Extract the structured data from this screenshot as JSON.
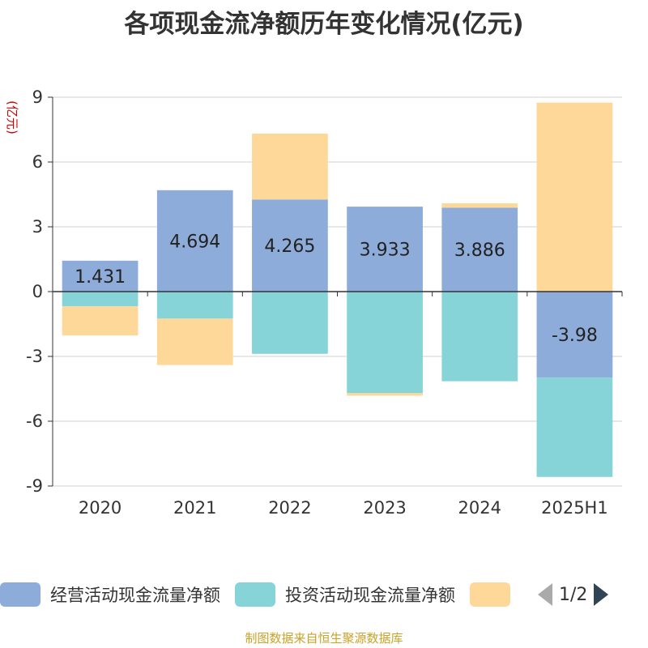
{
  "chart_data": {
    "type": "bar",
    "stacked": true,
    "title": "各项现金流净额历年变化情况(亿元)",
    "ylabel": "(亿元)",
    "ylim": [
      -9,
      9
    ],
    "yticks": [
      9,
      6,
      3,
      0,
      -3,
      -6,
      -9
    ],
    "categories": [
      "2020",
      "2021",
      "2022",
      "2023",
      "2024",
      "2025H1"
    ],
    "series": [
      {
        "name": "经营活动现金流量净额",
        "color": "#8eacd9",
        "values": [
          1.431,
          4.694,
          4.265,
          3.933,
          3.886,
          -3.98
        ],
        "labels": [
          "1.431",
          "4.694",
          "4.265",
          "3.933",
          "3.886",
          "-3.98"
        ]
      },
      {
        "name": "投资活动现金流量净额",
        "color": "#86d4d8",
        "values": [
          -0.68,
          -1.25,
          -2.88,
          -4.7,
          -4.15,
          -4.6
        ]
      },
      {
        "name": "",
        "color": "#fdd898",
        "values": [
          -1.35,
          -2.15,
          3.05,
          -0.12,
          0.2,
          8.75
        ]
      }
    ],
    "grid": true,
    "legend_position": "bottom"
  },
  "legend": {
    "page_label": "1/2"
  },
  "source_note": "制图数据来自恒生聚源数据库"
}
